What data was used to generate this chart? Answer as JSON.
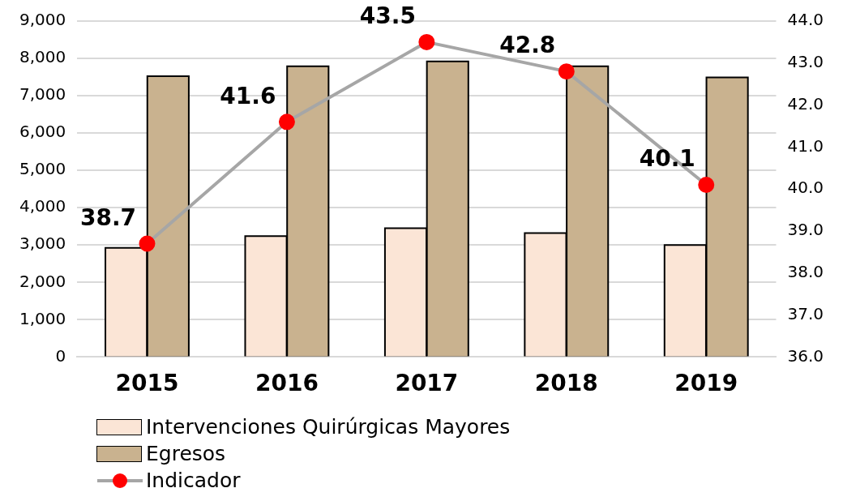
{
  "chart_data": {
    "type": "bar",
    "categories": [
      "2015",
      "2016",
      "2017",
      "2018",
      "2019"
    ],
    "series": [
      {
        "name": "Intervenciones Quirúrgicas Mayores",
        "color": "#fbe5d6",
        "values": [
          2900,
          3220,
          3430,
          3300,
          2980
        ]
      },
      {
        "name": "Egresos",
        "color": "#c9b28f",
        "values": [
          7500,
          7770,
          7900,
          7770,
          7470
        ]
      },
      {
        "name": "Indicador",
        "type": "line",
        "axis": "y2",
        "color": "#a6a6a6",
        "values": [
          38.7,
          41.6,
          43.5,
          42.8,
          40.1
        ],
        "value_labels": [
          "38.7",
          "41.6",
          "43.5",
          "42.8",
          "40.1"
        ]
      }
    ],
    "ylim": [
      0,
      9000
    ],
    "yticks": [
      {
        "value": 0,
        "label": "0"
      },
      {
        "value": 1000,
        "label": "1,000"
      },
      {
        "value": 2000,
        "label": "2,000"
      },
      {
        "value": 3000,
        "label": "3,000"
      },
      {
        "value": 4000,
        "label": "4,000"
      },
      {
        "value": 5000,
        "label": "5,000"
      },
      {
        "value": 6000,
        "label": "6,000"
      },
      {
        "value": 7000,
        "label": "7,000"
      },
      {
        "value": 8000,
        "label": "8,000"
      },
      {
        "value": 9000,
        "label": "9,000"
      }
    ],
    "y2lim": [
      36,
      44
    ],
    "y2ticks": [
      {
        "value": 36,
        "label": "36.0"
      },
      {
        "value": 37,
        "label": "37.0"
      },
      {
        "value": 38,
        "label": "38.0"
      },
      {
        "value": 39,
        "label": "39.0"
      },
      {
        "value": 40,
        "label": "40.0"
      },
      {
        "value": 41,
        "label": "41.0"
      },
      {
        "value": 42,
        "label": "42.0"
      },
      {
        "value": 43,
        "label": "43.0"
      },
      {
        "value": 44,
        "label": "44.0"
      }
    ],
    "grid": "y",
    "legend": "bottom",
    "marker": "circle"
  }
}
